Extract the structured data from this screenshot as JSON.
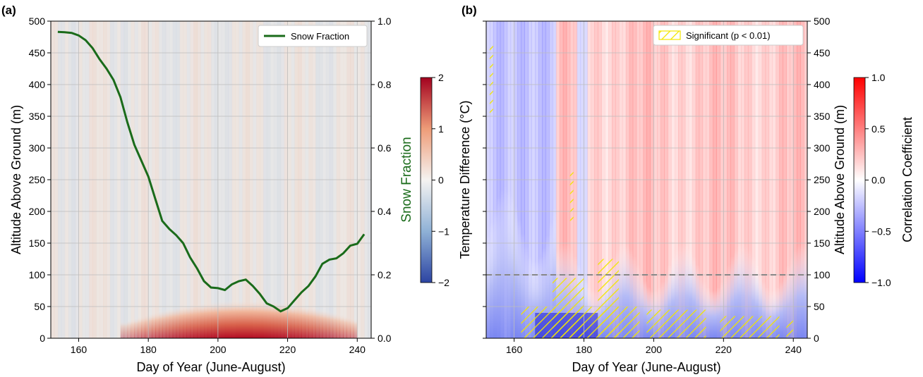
{
  "chart_data": [
    {
      "panel_label": "(a)",
      "type": "heatmap",
      "xlabel": "Day of Year (June-August)",
      "ylabel": "Altitude Above Ground (m)",
      "y2label": "Snow Fraction",
      "xlim": [
        152,
        244
      ],
      "ylim": [
        0,
        500
      ],
      "y2lim": [
        0,
        1.0
      ],
      "x_ticks": [
        160,
        180,
        200,
        220,
        240
      ],
      "y_ticks": [
        0,
        50,
        100,
        150,
        200,
        250,
        300,
        350,
        400,
        450,
        500
      ],
      "y2_ticks": [
        "0.0",
        "0.2",
        "0.4",
        "0.6",
        "0.8",
        "1.0"
      ],
      "grid": true,
      "legend": {
        "placement": "top-right",
        "entries": [
          {
            "label": "Snow Fraction",
            "color": "#1a6b1a"
          }
        ]
      },
      "colorbar": {
        "label": "Temperature Difference (°C)",
        "range": [
          -2,
          2
        ],
        "ticks": [
          "−2",
          "−1",
          "0",
          "1",
          "2"
        ],
        "colormap": "RdBu_r"
      },
      "heatmap_summary": {
        "description": "near-zero values above ~60 m; warm anomaly up to ~+2 °C concentrated below 30 m from day ~180 to ~235",
        "warm_layer_days": [
          172,
          240
        ],
        "warm_layer_peak_days": [
          195,
          220
        ],
        "warm_layer_top_m": 60,
        "peak_value": 2.0
      },
      "series": [
        {
          "name": "Snow Fraction",
          "color": "#1a6b1a",
          "x": [
            154,
            156,
            158,
            160,
            162,
            164,
            166,
            168,
            170,
            172,
            174,
            176,
            178,
            180,
            182,
            184,
            186,
            188,
            190,
            192,
            194,
            196,
            198,
            200,
            202,
            204,
            206,
            208,
            210,
            212,
            214,
            216,
            218,
            220,
            222,
            224,
            226,
            228,
            230,
            232,
            234,
            236,
            238,
            240,
            242
          ],
          "y": [
            0.966,
            0.965,
            0.963,
            0.955,
            0.94,
            0.915,
            0.88,
            0.85,
            0.815,
            0.76,
            0.68,
            0.61,
            0.56,
            0.51,
            0.44,
            0.37,
            0.345,
            0.325,
            0.3,
            0.255,
            0.22,
            0.18,
            0.16,
            0.158,
            0.152,
            0.17,
            0.18,
            0.185,
            0.165,
            0.14,
            0.11,
            0.1,
            0.085,
            0.095,
            0.12,
            0.145,
            0.165,
            0.195,
            0.235,
            0.248,
            0.252,
            0.268,
            0.292,
            0.298,
            0.328
          ]
        }
      ]
    },
    {
      "panel_label": "(b)",
      "type": "heatmap",
      "xlabel": "Day of Year (June-August)",
      "ylabel": "Altitude Above Ground (m)",
      "xlim": [
        152,
        244
      ],
      "ylim": [
        0,
        500
      ],
      "x_ticks": [
        160,
        180,
        200,
        220,
        240
      ],
      "y_ticks": [
        0,
        50,
        100,
        150,
        200,
        250,
        300,
        350,
        400,
        450,
        500
      ],
      "grid": true,
      "reference_line": {
        "y": 100,
        "style": "dashed",
        "color": "#888888"
      },
      "legend": {
        "placement": "top-right",
        "entries": [
          {
            "label": "Significant (p < 0.01)",
            "color": "#f2e600"
          }
        ]
      },
      "colorbar": {
        "label": "Correlation Coefficient",
        "range": [
          -1.0,
          1.0
        ],
        "ticks": [
          "−1.0",
          "−0.5",
          "0.0",
          "0.5",
          "1.0"
        ],
        "colormap": "bwr"
      },
      "heatmap_summary": {
        "description": "negative correlation (blue) below ~150 m and early season; positive correlation (red) aloft after day ~175",
        "negative_layer_top_m": 150,
        "min_value": -0.9,
        "max_value": 0.4
      },
      "significant_regions": [
        {
          "days": [
            153,
            154
          ],
          "alt": [
            350,
            465
          ]
        },
        {
          "days": [
            176,
            177
          ],
          "alt": [
            185,
            265
          ]
        },
        {
          "days": [
            162,
            196
          ],
          "alt": [
            0,
            50
          ]
        },
        {
          "days": [
            171,
            180
          ],
          "alt": [
            0,
            95
          ]
        },
        {
          "days": [
            184,
            190
          ],
          "alt": [
            0,
            125
          ]
        },
        {
          "days": [
            198,
            215
          ],
          "alt": [
            0,
            45
          ]
        },
        {
          "days": [
            219,
            236
          ],
          "alt": [
            0,
            35
          ]
        },
        {
          "days": [
            238,
            240
          ],
          "alt": [
            0,
            30
          ]
        }
      ]
    }
  ]
}
